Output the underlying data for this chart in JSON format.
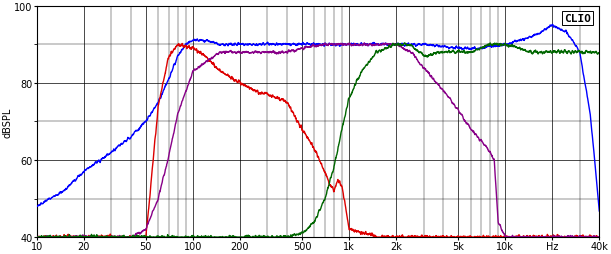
{
  "title": "CLIO",
  "ylabel": "dBSPL",
  "xlim": [
    10,
    40000
  ],
  "ylim": [
    40,
    100
  ],
  "yticks": [
    40,
    60,
    80,
    100
  ],
  "xticks": [
    10,
    20,
    50,
    100,
    200,
    500,
    1000,
    2000,
    5000,
    10000,
    20000,
    40000
  ],
  "xtick_labels": [
    "10",
    "20",
    "50",
    "100",
    "200",
    "500",
    "1k",
    "2k",
    "5k",
    "10k",
    "Hz",
    "40k"
  ],
  "background_color": "#ffffff",
  "grid_color": "#000000",
  "line_colors": {
    "blue": "#0000ff",
    "red": "#dd0000",
    "purple": "#880088",
    "green": "#006600"
  },
  "blue": {
    "freqs": [
      10,
      15,
      20,
      30,
      40,
      50,
      60,
      70,
      80,
      90,
      100,
      120,
      150,
      200,
      300,
      500,
      700,
      1000,
      1500,
      2000,
      3000,
      5000,
      7000,
      10000,
      15000,
      20000,
      25000,
      30000,
      35000,
      40000
    ],
    "vals": [
      48,
      52,
      57,
      62,
      66,
      70,
      75,
      81,
      87,
      90,
      91,
      91,
      90,
      90,
      90,
      90,
      90,
      90,
      90,
      90,
      90,
      89,
      89,
      90,
      92,
      95,
      93,
      88,
      72,
      47
    ]
  },
  "red": {
    "freqs": [
      10,
      30,
      50,
      60,
      70,
      80,
      100,
      120,
      150,
      200,
      250,
      300,
      350,
      400,
      500,
      600,
      700,
      750,
      800,
      850,
      900,
      950,
      1000,
      1500,
      40000
    ],
    "vals": [
      40,
      40,
      40,
      74,
      87,
      90,
      89,
      87,
      83,
      80,
      78,
      77,
      76,
      75,
      68,
      63,
      57,
      54,
      52,
      55,
      53,
      48,
      42,
      40,
      40
    ]
  },
  "purple": {
    "freqs": [
      10,
      40,
      50,
      60,
      70,
      80,
      100,
      150,
      200,
      300,
      400,
      500,
      700,
      1000,
      1500,
      2000,
      2500,
      3000,
      4000,
      5000,
      6000,
      7000,
      8000,
      8500,
      9000,
      9500,
      10000,
      15000,
      40000
    ],
    "vals": [
      40,
      40,
      42,
      50,
      61,
      72,
      83,
      88,
      88,
      88,
      88,
      89,
      90,
      90,
      90,
      90,
      88,
      84,
      78,
      73,
      68,
      65,
      62,
      60,
      44,
      42,
      40,
      40,
      40
    ]
  },
  "green": {
    "freqs": [
      10,
      400,
      500,
      600,
      700,
      800,
      900,
      1000,
      1200,
      1500,
      2000,
      2500,
      3000,
      4000,
      5000,
      6000,
      7000,
      8000,
      10000,
      15000,
      40000
    ],
    "vals": [
      40,
      40,
      41,
      44,
      50,
      58,
      68,
      76,
      83,
      88,
      90,
      90,
      87,
      88,
      88,
      88,
      89,
      90,
      90,
      88,
      88
    ]
  }
}
